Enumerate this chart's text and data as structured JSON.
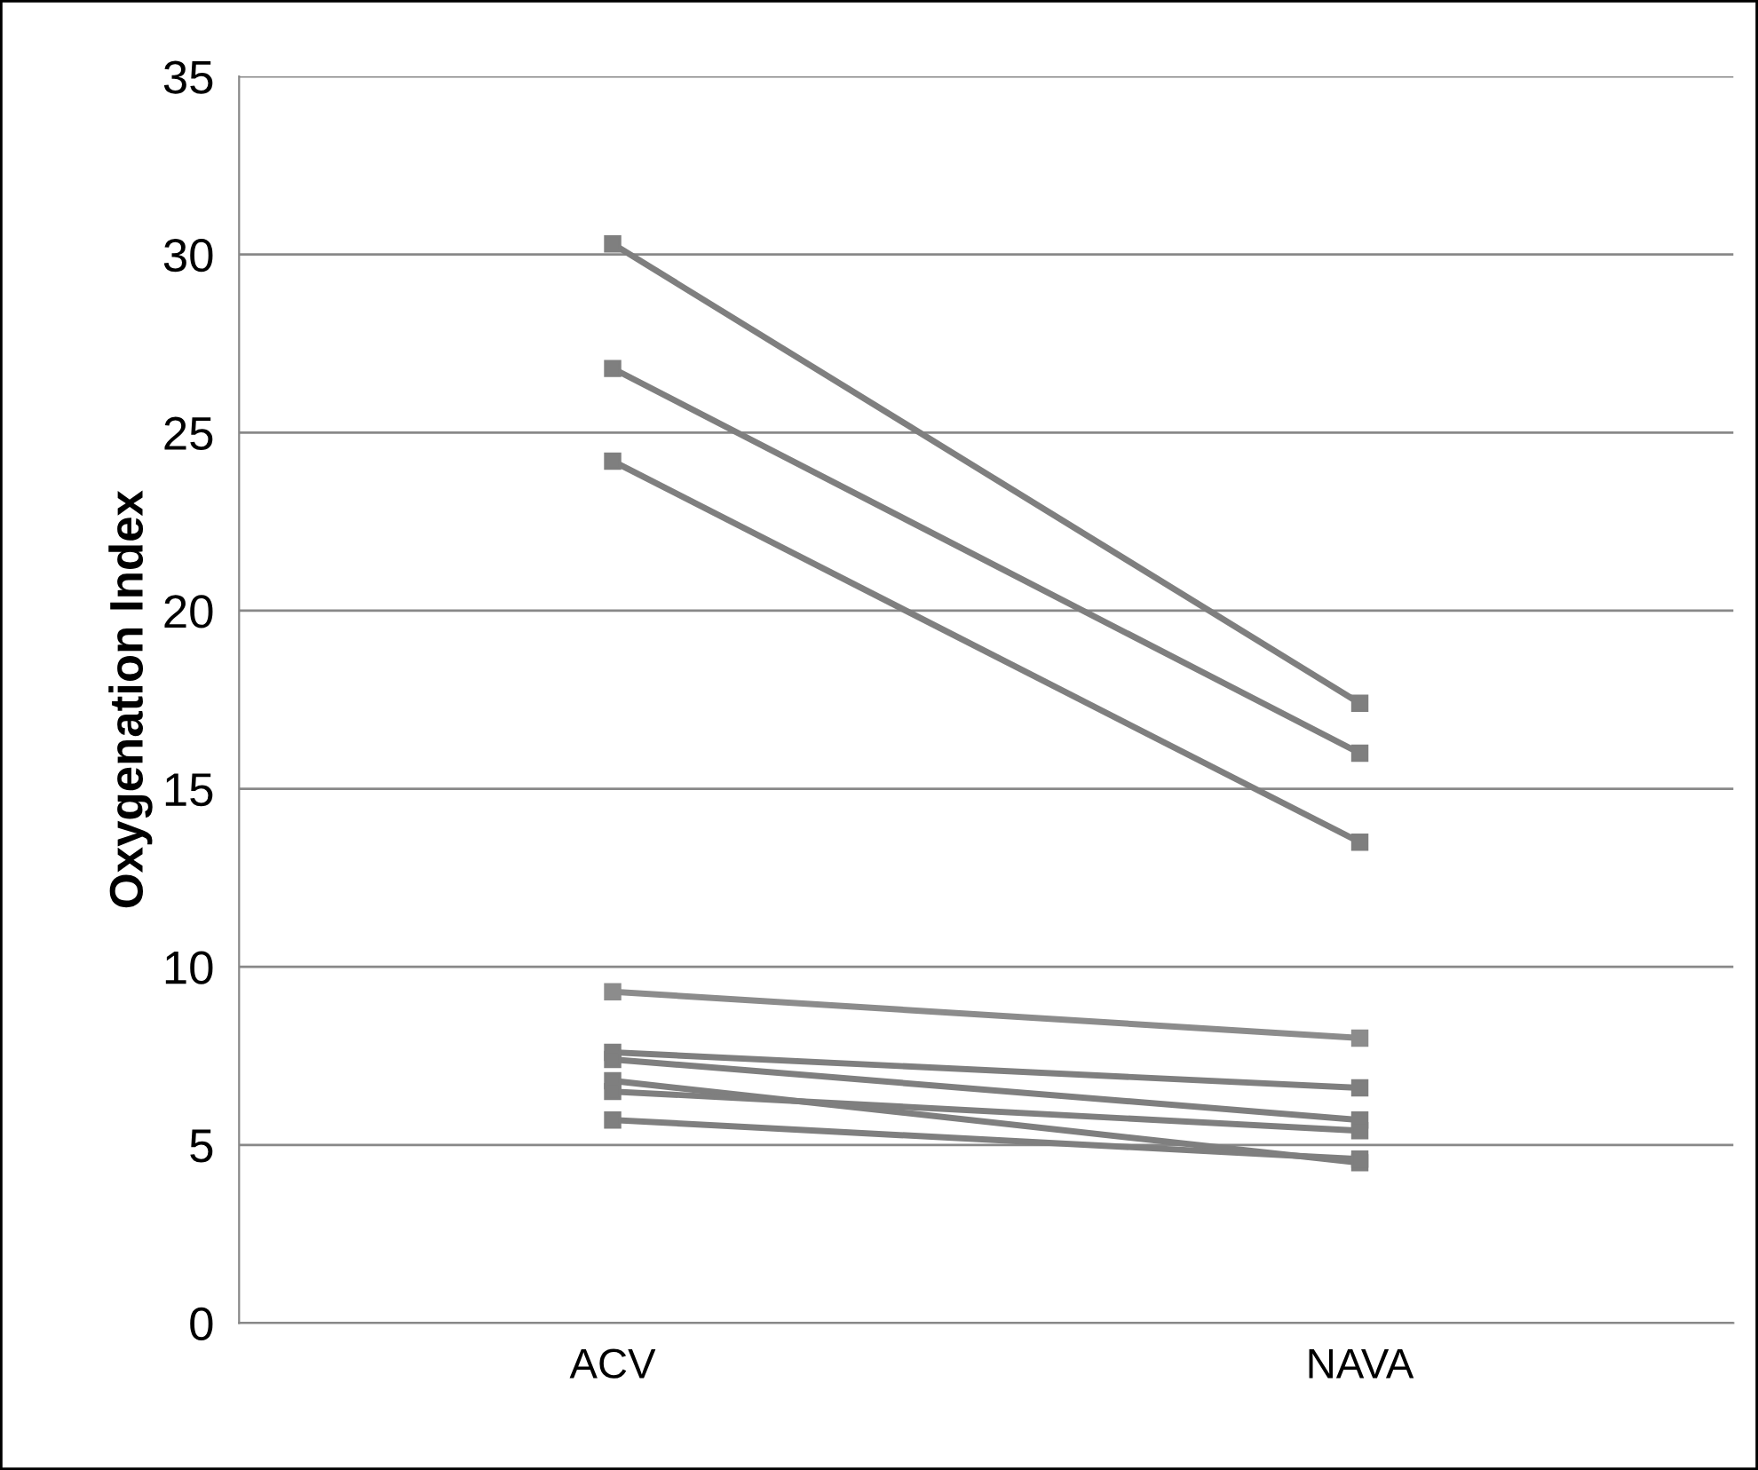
{
  "chart_data": {
    "type": "line",
    "ylabel": "Oxygenation Index",
    "categories": [
      "ACV",
      "NAVA"
    ],
    "series": [
      {
        "color": "#7f7f7f",
        "values": [
          30.3,
          17.4
        ]
      },
      {
        "color": "#7f7f7f",
        "values": [
          26.8,
          16.0
        ]
      },
      {
        "color": "#7f7f7f",
        "values": [
          24.2,
          13.5
        ]
      },
      {
        "color": "#8c8c8c",
        "values": [
          9.3,
          8.0
        ]
      },
      {
        "color": "#7f7f7f",
        "values": [
          7.6,
          6.6
        ]
      },
      {
        "color": "#7f7f7f",
        "values": [
          7.4,
          5.7
        ]
      },
      {
        "color": "#7f7f7f",
        "values": [
          6.8,
          4.5
        ]
      },
      {
        "color": "#7f7f7f",
        "values": [
          6.5,
          5.4
        ]
      },
      {
        "color": "#7f7f7f",
        "values": [
          5.7,
          4.6
        ]
      }
    ],
    "ylim": [
      0,
      35
    ],
    "yticks": [
      0,
      5,
      10,
      15,
      20,
      25,
      30,
      35
    ],
    "grid": "y",
    "marker": "square",
    "line_style": "solid"
  }
}
